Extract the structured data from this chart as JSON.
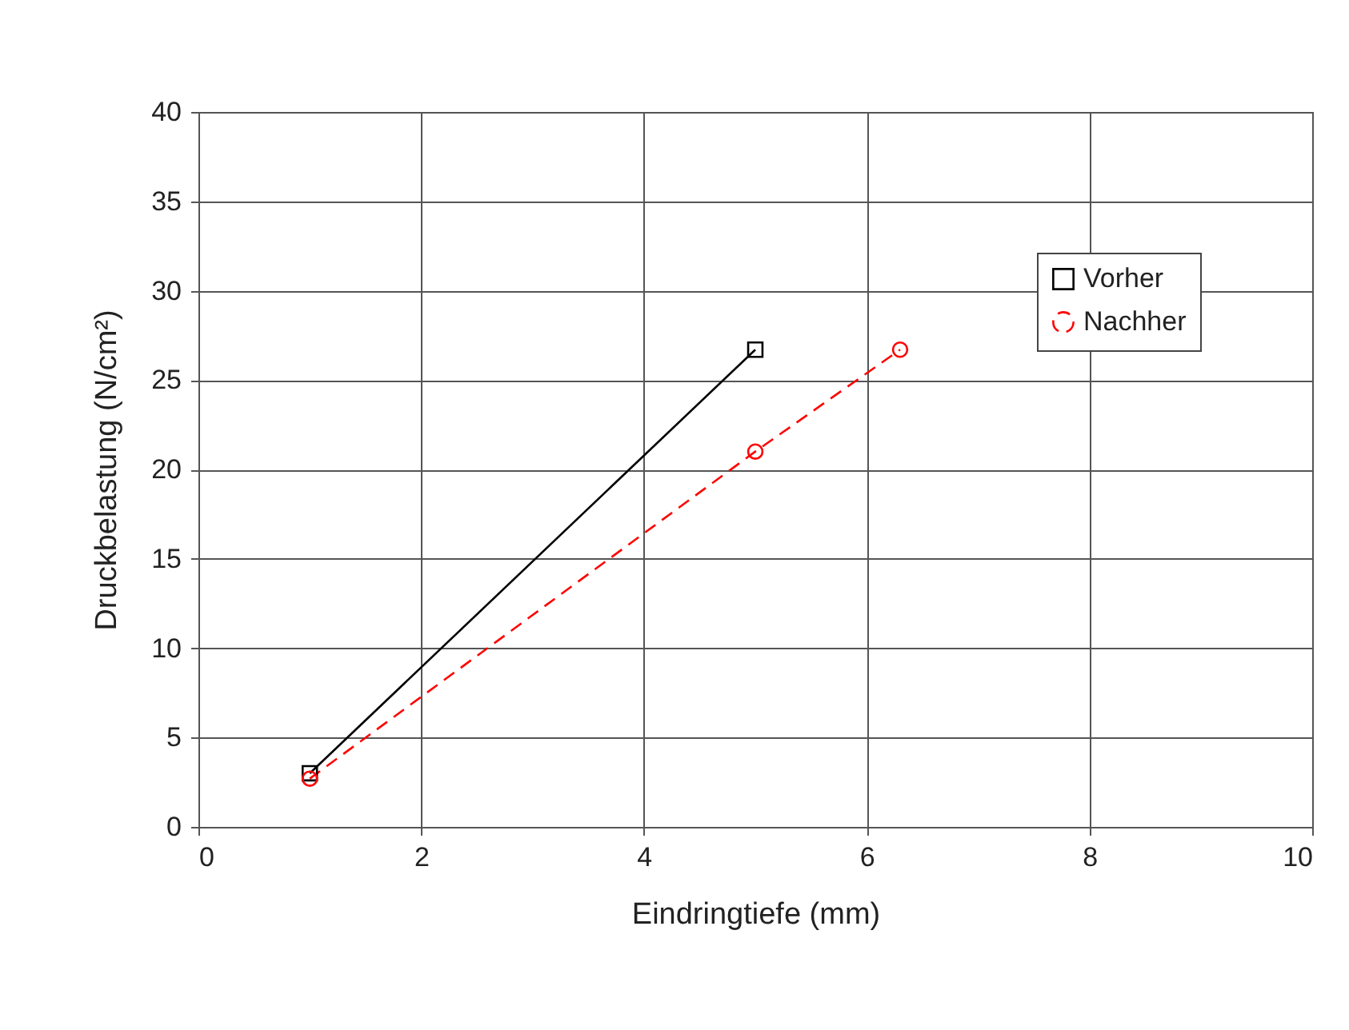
{
  "chart_data": {
    "type": "line",
    "xlabel": "Eindringtiefe (mm)",
    "ylabel": "Druckbelastung (N/cm²)",
    "series": [
      {
        "name": "Vorher",
        "color": "#000000",
        "x": [
          1,
          5
        ],
        "values": [
          3.0,
          26.7
        ],
        "marker": "square",
        "line_style": "solid"
      },
      {
        "name": "Nachher",
        "color": "#ff0000",
        "x": [
          1,
          5,
          6.3
        ],
        "values": [
          2.7,
          21.0,
          26.7
        ],
        "marker": "circle",
        "line_style": "dashed"
      }
    ],
    "xlim": [
      0,
      10
    ],
    "xticks": [
      0,
      2,
      4,
      6,
      8,
      10
    ],
    "ylim": [
      0,
      40
    ],
    "yticks": [
      0,
      5,
      10,
      15,
      20,
      25,
      30,
      35,
      40
    ],
    "grid": true,
    "legend": "top right"
  }
}
